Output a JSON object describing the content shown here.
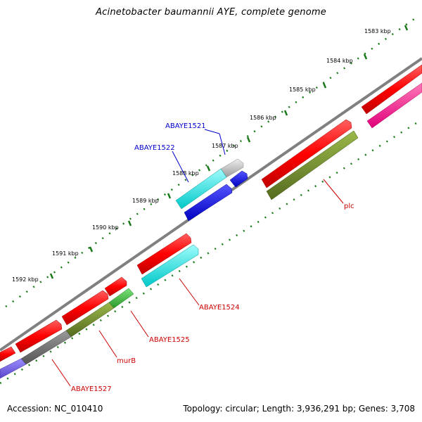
{
  "title": "Acinetobacter baumannii AYE, complete genome",
  "footer": {
    "accession": "Accession: NC_010410",
    "summary": "Topology: circular; Length: 3,936,291 bp; Genes: 3,708"
  },
  "ticks": [
    "1583 kbp",
    "1584 kbp",
    "1585 kbp",
    "1586 kbp",
    "1587 kbp",
    "1588 kbp",
    "1589 kbp",
    "1590 kbp",
    "1591 kbp",
    "1592 kbp"
  ],
  "features": {
    "ABAYE1521": "ABAYE1521",
    "ABAYE1522": "ABAYE1522",
    "plc": "plc",
    "ABAYE1524": "ABAYE1524",
    "ABAYE1525": "ABAYE1525",
    "murB": "murB",
    "ABAYE1527": "ABAYE1527"
  },
  "colors": {
    "cds_red": "#ff0000",
    "cyan": "#00e5e5",
    "blue": "#0000e0",
    "olive": "#6b8e23",
    "magenta": "#ff1493",
    "gray": "#bbbbbb",
    "green_tick": "#1a7a1a",
    "backbone": "#888888"
  }
}
